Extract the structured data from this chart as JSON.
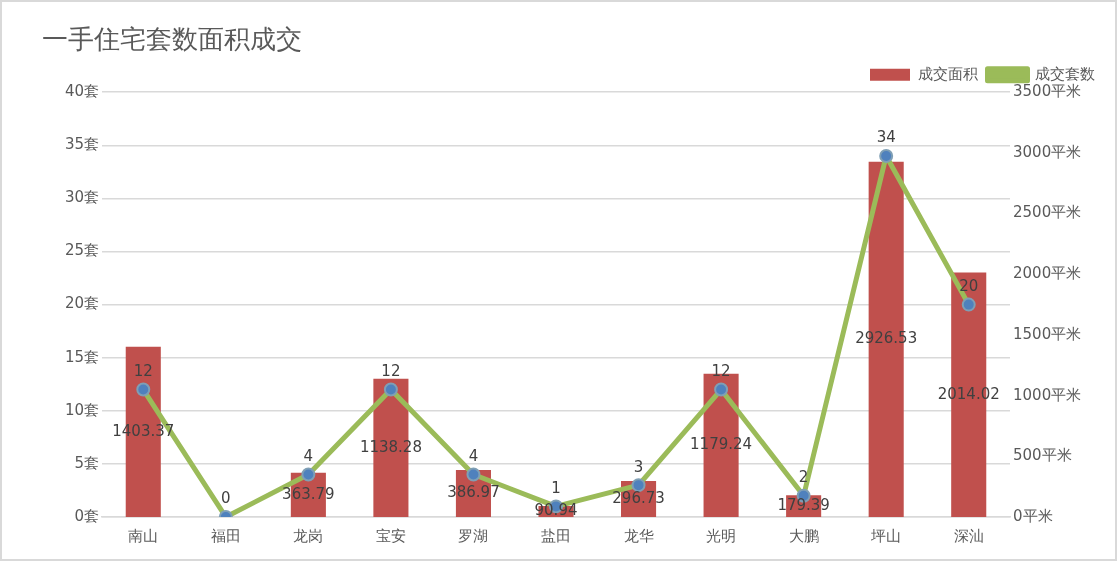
{
  "chart_data": {
    "type": "bar",
    "title": "一手住宅套数面积成交",
    "categories": [
      "南山",
      "福田",
      "龙岗",
      "宝安",
      "罗湖",
      "盐田",
      "龙华",
      "光明",
      "大鹏",
      "坪山",
      "深汕"
    ],
    "series": [
      {
        "name": "成交面积",
        "axis": "y2",
        "color": "#c0504d",
        "values": [
          1403.37,
          0,
          363.79,
          1138.28,
          386.97,
          90.94,
          296.73,
          1179.24,
          179.39,
          2926.53,
          2014.02
        ],
        "value_labels": [
          "1403.37",
          null,
          "363.79",
          "1138.28",
          "386.97",
          "90.94",
          "296.73",
          "1179.24",
          "179.39",
          "2926.53",
          "2014.02"
        ]
      },
      {
        "name": "成交套数",
        "type": "line",
        "color": "#9bbb59",
        "marker": "circle",
        "values": [
          12,
          0,
          4,
          12,
          4,
          1,
          3,
          12,
          2,
          34,
          20
        ],
        "value_labels": [
          "12",
          "0",
          "4",
          "12",
          "4",
          "1",
          "3",
          "12",
          "2",
          "34",
          "20"
        ]
      }
    ],
    "ylim": [
      0,
      40
    ],
    "yticks": [
      {
        "value": 0,
        "label": "0套"
      },
      {
        "value": 5,
        "label": "5套"
      },
      {
        "value": 10,
        "label": "10套"
      },
      {
        "value": 15,
        "label": "15套"
      },
      {
        "value": 20,
        "label": "20套"
      },
      {
        "value": 25,
        "label": "25套"
      },
      {
        "value": 30,
        "label": "30套"
      },
      {
        "value": 35,
        "label": "35套"
      },
      {
        "value": 40,
        "label": "40套"
      }
    ],
    "y2lim": [
      0,
      3500
    ],
    "y2ticks": [
      {
        "value": 0,
        "label": "0平米"
      },
      {
        "value": 500,
        "label": "500平米"
      },
      {
        "value": 1000,
        "label": "1000平米"
      },
      {
        "value": 1500,
        "label": "1500平米"
      },
      {
        "value": 2000,
        "label": "2000平米"
      },
      {
        "value": 2500,
        "label": "2500平米"
      },
      {
        "value": 3000,
        "label": "3000平米"
      },
      {
        "value": 3500,
        "label": "3500平米"
      }
    ],
    "grid": "y",
    "legend": "top right"
  }
}
